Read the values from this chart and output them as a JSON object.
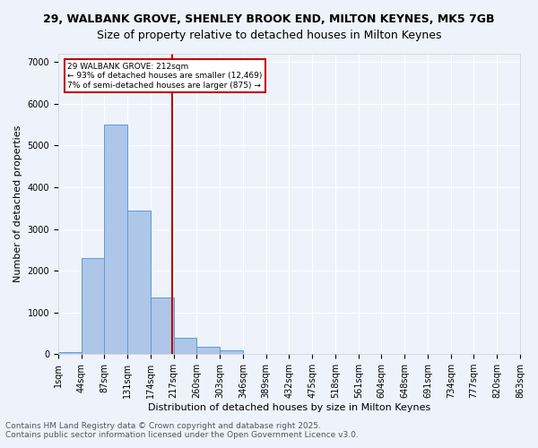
{
  "title_line1": "29, WALBANK GROVE, SHENLEY BROOK END, MILTON KEYNES, MK5 7GB",
  "title_line2": "Size of property relative to detached houses in Milton Keynes",
  "xlabel": "Distribution of detached houses by size in Milton Keynes",
  "ylabel": "Number of detached properties",
  "bin_labels": [
    "1sqm",
    "44sqm",
    "87sqm",
    "131sqm",
    "174sqm",
    "217sqm",
    "260sqm",
    "303sqm",
    "346sqm",
    "389sqm",
    "432sqm",
    "475sqm",
    "518sqm",
    "561sqm",
    "604sqm",
    "648sqm",
    "691sqm",
    "734sqm",
    "777sqm",
    "820sqm",
    "863sqm"
  ],
  "bar_values": [
    50,
    2300,
    5500,
    3450,
    1350,
    400,
    175,
    90,
    0,
    0,
    0,
    0,
    0,
    0,
    0,
    0,
    0,
    0,
    0,
    0
  ],
  "bar_color": "#aec6e8",
  "bar_edge_color": "#5b9bd5",
  "vline_x": 4.95,
  "vline_color": "#c00000",
  "annotation_text": "29 WALBANK GROVE: 212sqm\n← 93% of detached houses are smaller (12,469)\n7% of semi-detached houses are larger (875) →",
  "annotation_box_color": "#c00000",
  "annotation_text_color": "#000000",
  "ylim": [
    0,
    7200
  ],
  "yticks": [
    0,
    1000,
    2000,
    3000,
    4000,
    5000,
    6000,
    7000
  ],
  "bg_color": "#eef3fb",
  "grid_color": "#ffffff",
  "footer_line1": "Contains HM Land Registry data © Crown copyright and database right 2025.",
  "footer_line2": "Contains public sector information licensed under the Open Government Licence v3.0.",
  "title_fontsize": 9,
  "axis_label_fontsize": 8,
  "tick_fontsize": 7,
  "footer_fontsize": 6.5
}
